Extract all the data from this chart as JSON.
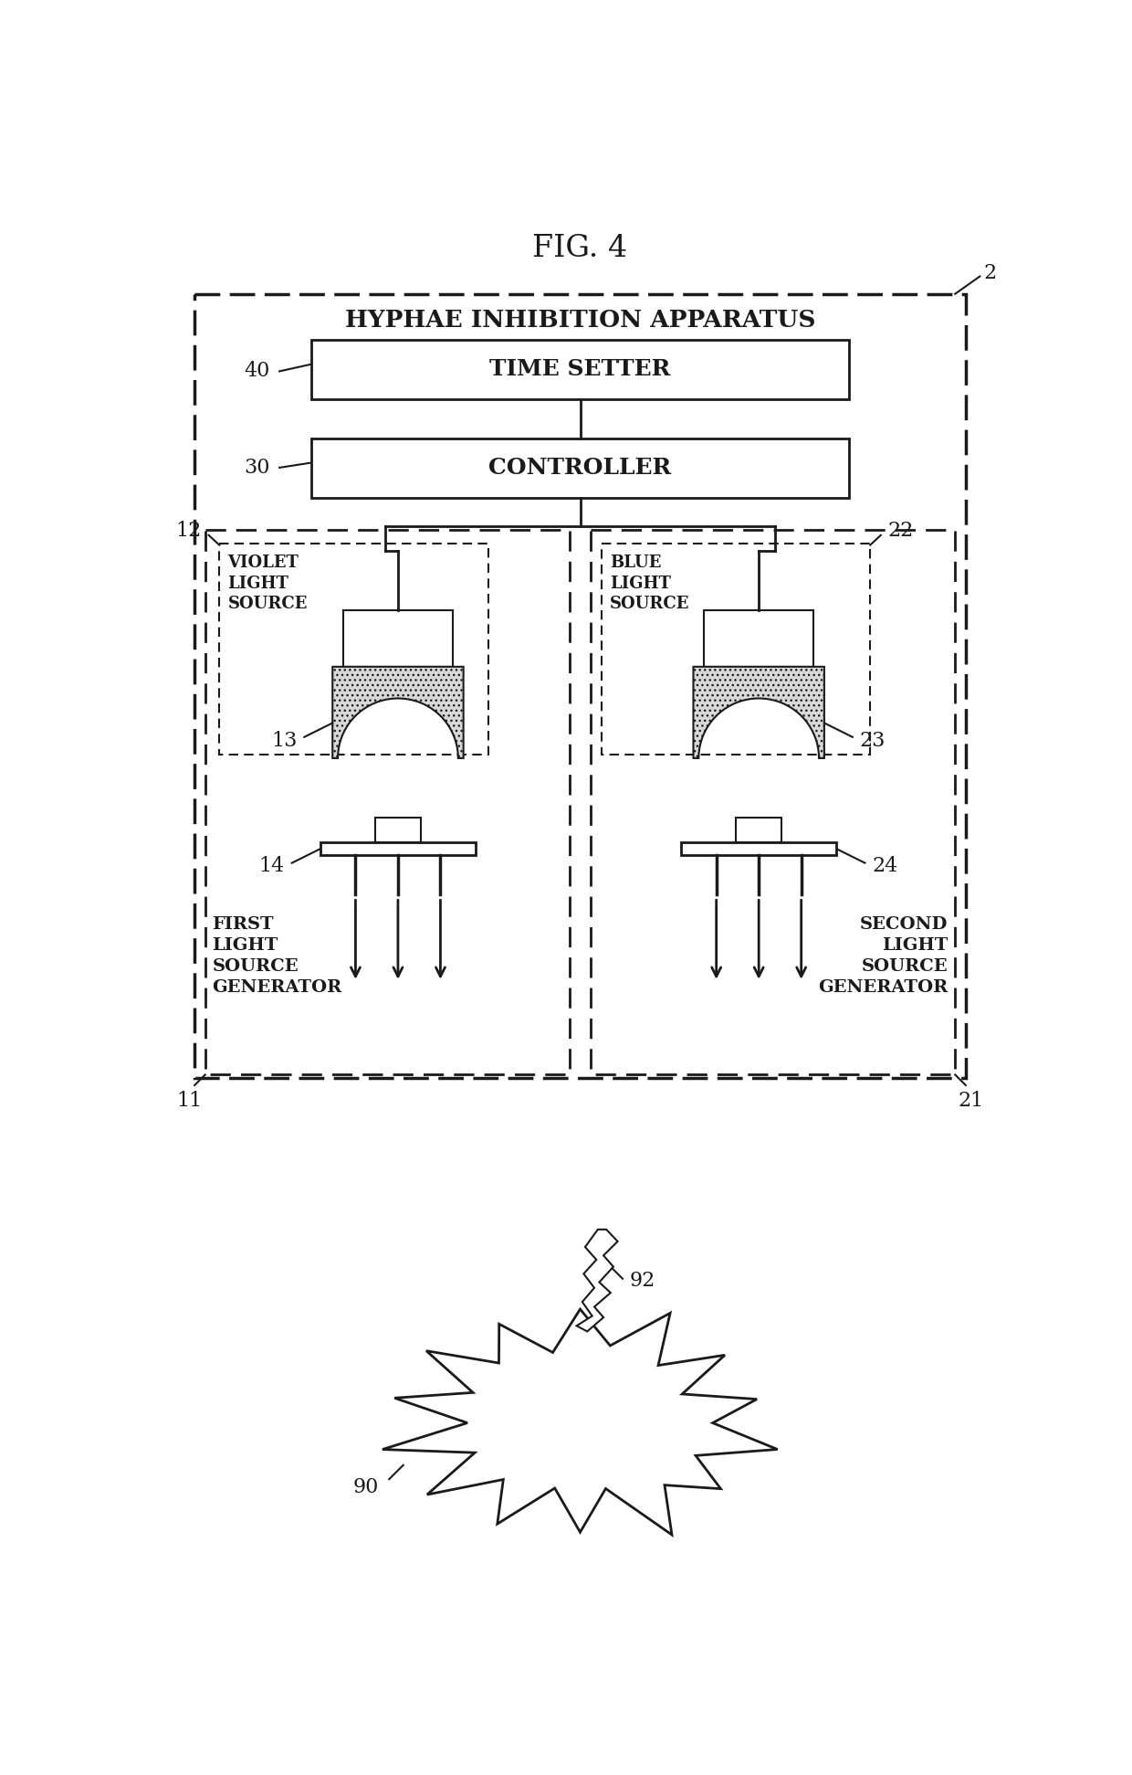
{
  "title": "FIG. 4",
  "title_fontsize": 22,
  "bg_color": "#ffffff",
  "line_color": "#1a1a1a",
  "outer_box_label": "HYPHAE INHIBITION APPARATUS",
  "ref_2": "2",
  "time_setter_label": "TIME SETTER",
  "time_setter_ref": "40",
  "controller_label": "CONTROLLER",
  "controller_ref": "30",
  "left_gen_ref": "11",
  "right_gen_ref": "21",
  "left_light_ref": "12",
  "right_light_ref": "22",
  "left_led_ref": "13",
  "right_led_ref": "23",
  "left_mount_ref": "14",
  "right_mount_ref": "24",
  "fungi_ref": "90",
  "hyphae_ref": "92",
  "fig_width": 1240,
  "fig_height": 1943
}
